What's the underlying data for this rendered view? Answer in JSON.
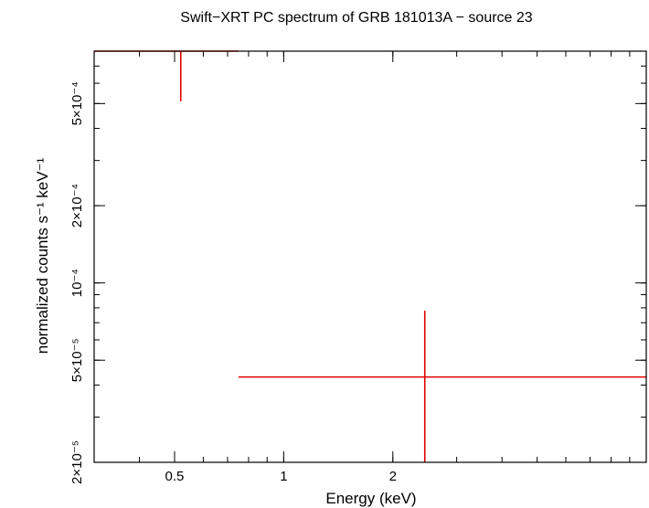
{
  "chart_data": {
    "type": "scatter",
    "title": "Swift−XRT PC spectrum of GRB 181013A − source 23",
    "xlabel": "Energy (keV)",
    "ylabel": "normalized counts s⁻¹ keV⁻¹",
    "xscale": "log",
    "yscale": "log",
    "xlim": [
      0.3,
      10
    ],
    "ylim": [
      2e-05,
      0.0008
    ],
    "x_ticks": [
      {
        "value": 0.5,
        "label": "0.5"
      },
      {
        "value": 1,
        "label": "1"
      },
      {
        "value": 2,
        "label": "2"
      }
    ],
    "y_ticks": [
      {
        "value": 2e-05,
        "label": "2×10⁻⁵"
      },
      {
        "value": 5e-05,
        "label": "5×10⁻⁵"
      },
      {
        "value": 0.0001,
        "label": "10⁻⁴"
      },
      {
        "value": 0.0002,
        "label": "2×10⁻⁴"
      },
      {
        "value": 0.0005,
        "label": "5×10⁻⁴"
      }
    ],
    "series": [
      {
        "color": "#e00000",
        "points": [
          {
            "x": 0.52,
            "xerr_lo": 0.22,
            "xerr_hi": 0.23,
            "y": 0.00081,
            "yerr_lo": 0.0003,
            "yerr_hi": 0.0003
          },
          {
            "x": 2.45,
            "xerr_lo": 1.7,
            "xerr_hi": 7.55,
            "y": 4.3e-05,
            "yerr_lo": 2.3e-05,
            "yerr_hi": 3.5e-05
          }
        ]
      }
    ],
    "grid": false,
    "legend": "none"
  }
}
